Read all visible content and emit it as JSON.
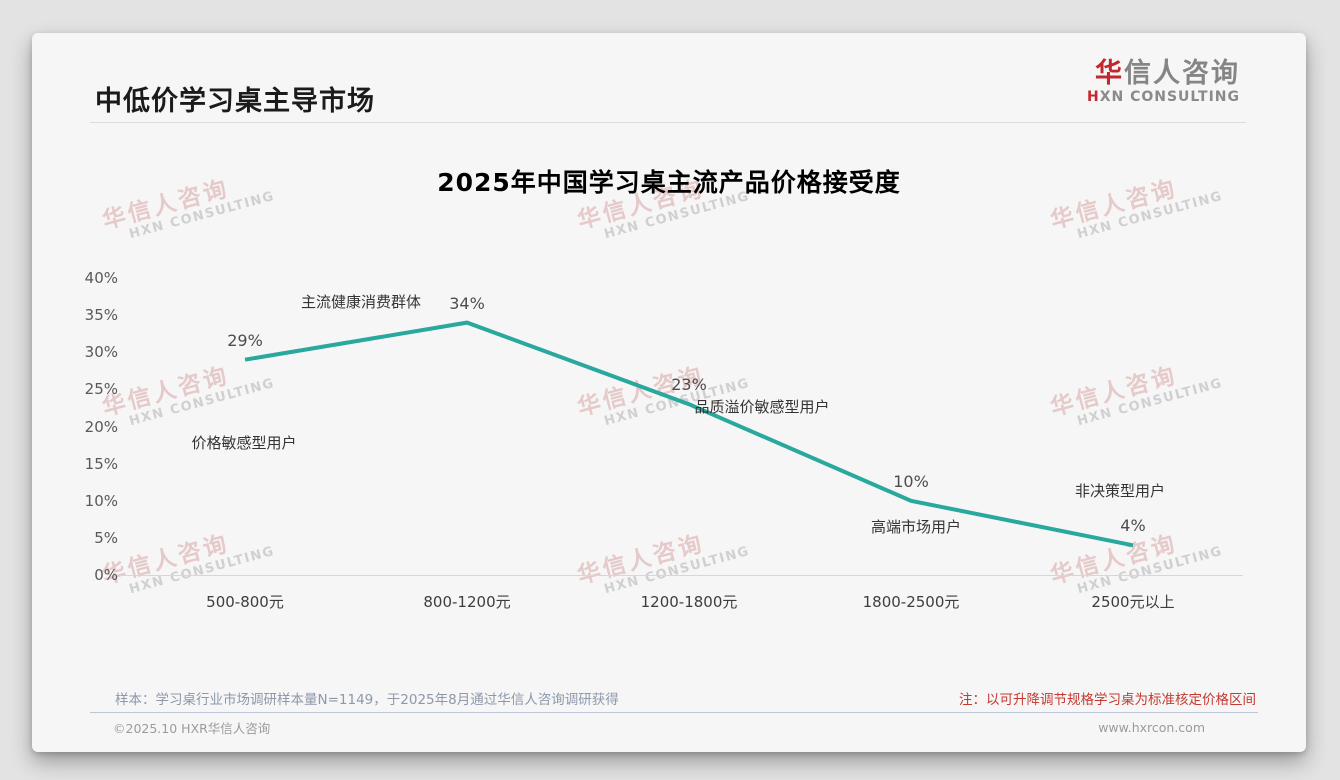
{
  "page": {
    "title": "中低价学习桌主导市场",
    "logo": {
      "cn_accent": "华",
      "cn_rest": "信人咨询",
      "en_accent": "H",
      "en_rest": "XN CONSULTING"
    },
    "watermark": {
      "line1": "华信人咨询",
      "line2": "HXN CONSULTING"
    },
    "footnotes": {
      "sample": "样本：学习桌行业市场调研样本量N=1149，于2025年8月通过华信人咨询调研获得",
      "note": "注：以可升降调节规格学习桌为标准核定价格区间"
    },
    "footer": {
      "copyright": "©2025.10 HXR华信人咨询",
      "website": "www.hxrcon.com"
    },
    "colors": {
      "accent_red": "#c1272d",
      "line_teal": "#29a89d",
      "note_red": "#c43a31"
    }
  },
  "chart_data": {
    "type": "line",
    "title": "2025年中国学习桌主流产品价格接受度",
    "categories": [
      "500-800元",
      "800-1200元",
      "1200-1800元",
      "1800-2500元",
      "2500元以上"
    ],
    "values": [
      29,
      34,
      23,
      10,
      4
    ],
    "value_labels": [
      "29%",
      "34%",
      "23%",
      "10%",
      "4%"
    ],
    "annotations": [
      "价格敏感型用户",
      "主流健康消费群体",
      "品质溢价敏感型用户",
      "高端市场用户",
      "非决策型用户"
    ],
    "yticks": [
      "40%",
      "35%",
      "30%",
      "25%",
      "20%",
      "15%",
      "10%",
      "5%",
      "0%"
    ],
    "ylim": [
      0,
      40
    ],
    "xlabel": "",
    "ylabel": "",
    "grid": false,
    "legend": false,
    "line_color": "#29a89d"
  }
}
